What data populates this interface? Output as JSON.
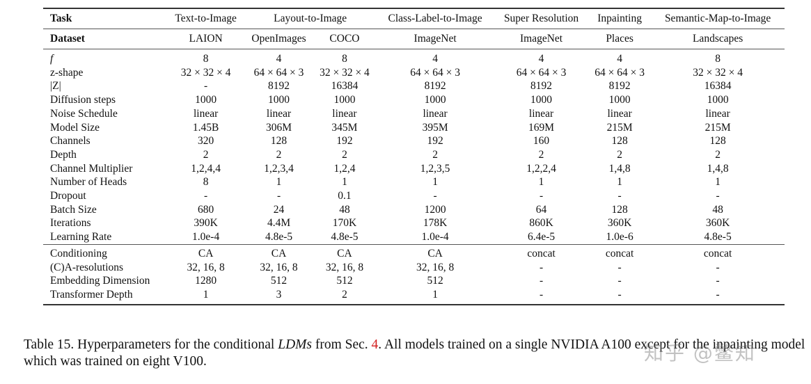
{
  "table": {
    "header": {
      "task_label": "Task",
      "tasks": [
        {
          "label": "Text-to-Image",
          "span": 1
        },
        {
          "label": "Layout-to-Image",
          "span": 2
        },
        {
          "label": "Class-Label-to-Image",
          "span": 1
        },
        {
          "label": "Super Resolution",
          "span": 1
        },
        {
          "label": "Inpainting",
          "span": 1
        },
        {
          "label": "Semantic-Map-to-Image",
          "span": 1
        }
      ],
      "dataset_label": "Dataset",
      "datasets": [
        "LAION",
        "OpenImages",
        "COCO",
        "ImageNet",
        "ImageNet",
        "Places",
        "Landscapes"
      ]
    },
    "rows_group1": [
      {
        "label": "f",
        "italic": true,
        "values": [
          "8",
          "4",
          "8",
          "4",
          "4",
          "4",
          "8"
        ]
      },
      {
        "label": "z-shape",
        "values": [
          "32 × 32 × 4",
          "64 × 64 × 3",
          "32 × 32 × 4",
          "64 × 64 × 3",
          "64 × 64 × 3",
          "64 × 64 × 3",
          "32 × 32 × 4"
        ]
      },
      {
        "label": "|Z|",
        "values": [
          "-",
          "8192",
          "16384",
          "8192",
          "8192",
          "8192",
          "16384"
        ]
      },
      {
        "label": "Diffusion steps",
        "values": [
          "1000",
          "1000",
          "1000",
          "1000",
          "1000",
          "1000",
          "1000"
        ]
      },
      {
        "label": "Noise Schedule",
        "values": [
          "linear",
          "linear",
          "linear",
          "linear",
          "linear",
          "linear",
          "linear"
        ]
      },
      {
        "label": "Model Size",
        "values": [
          "1.45B",
          "306M",
          "345M",
          "395M",
          "169M",
          "215M",
          "215M"
        ]
      },
      {
        "label": "Channels",
        "values": [
          "320",
          "128",
          "192",
          "192",
          "160",
          "128",
          "128"
        ]
      },
      {
        "label": "Depth",
        "values": [
          "2",
          "2",
          "2",
          "2",
          "2",
          "2",
          "2"
        ]
      },
      {
        "label": "Channel Multiplier",
        "values": [
          "1,2,4,4",
          "1,2,3,4",
          "1,2,4",
          "1,2,3,5",
          "1,2,2,4",
          "1,4,8",
          "1,4,8"
        ]
      },
      {
        "label": "Number of Heads",
        "values": [
          "8",
          "1",
          "1",
          "1",
          "1",
          "1",
          "1"
        ]
      },
      {
        "label": "Dropout",
        "values": [
          "-",
          "-",
          "0.1",
          "-",
          "-",
          "-",
          "-"
        ]
      },
      {
        "label": "Batch Size",
        "values": [
          "680",
          "24",
          "48",
          "1200",
          "64",
          "128",
          "48"
        ]
      },
      {
        "label": "Iterations",
        "values": [
          "390K",
          "4.4M",
          "170K",
          "178K",
          "860K",
          "360K",
          "360K"
        ]
      },
      {
        "label": "Learning Rate",
        "values": [
          "1.0e-4",
          "4.8e-5",
          "4.8e-5",
          "1.0e-4",
          "6.4e-5",
          "1.0e-6",
          "4.8e-5"
        ]
      }
    ],
    "rows_group2": [
      {
        "label": "Conditioning",
        "values": [
          "CA",
          "CA",
          "CA",
          "CA",
          "concat",
          "concat",
          "concat"
        ]
      },
      {
        "label": "(C)A-resolutions",
        "values": [
          "32, 16, 8",
          "32, 16, 8",
          "32, 16, 8",
          "32, 16, 8",
          "-",
          "-",
          "-"
        ]
      },
      {
        "label": "Embedding Dimension",
        "values": [
          "1280",
          "512",
          "512",
          "512",
          "-",
          "-",
          "-"
        ]
      },
      {
        "label": "Transformer Depth",
        "values": [
          "1",
          "3",
          "2",
          "1",
          "-",
          "-",
          "-"
        ]
      }
    ]
  },
  "caption": {
    "prefix": "Table 15.  Hyperparameters for the conditional ",
    "ldm": "LDMs",
    "mid": " from Sec. ",
    "ref": "4",
    "suffix": ". All models trained on a single NVIDIA A100 except for the inpainting model which was trained on eight V100."
  },
  "watermark": "知乎 @鳖知",
  "colors": {
    "reference": "#d42020"
  }
}
